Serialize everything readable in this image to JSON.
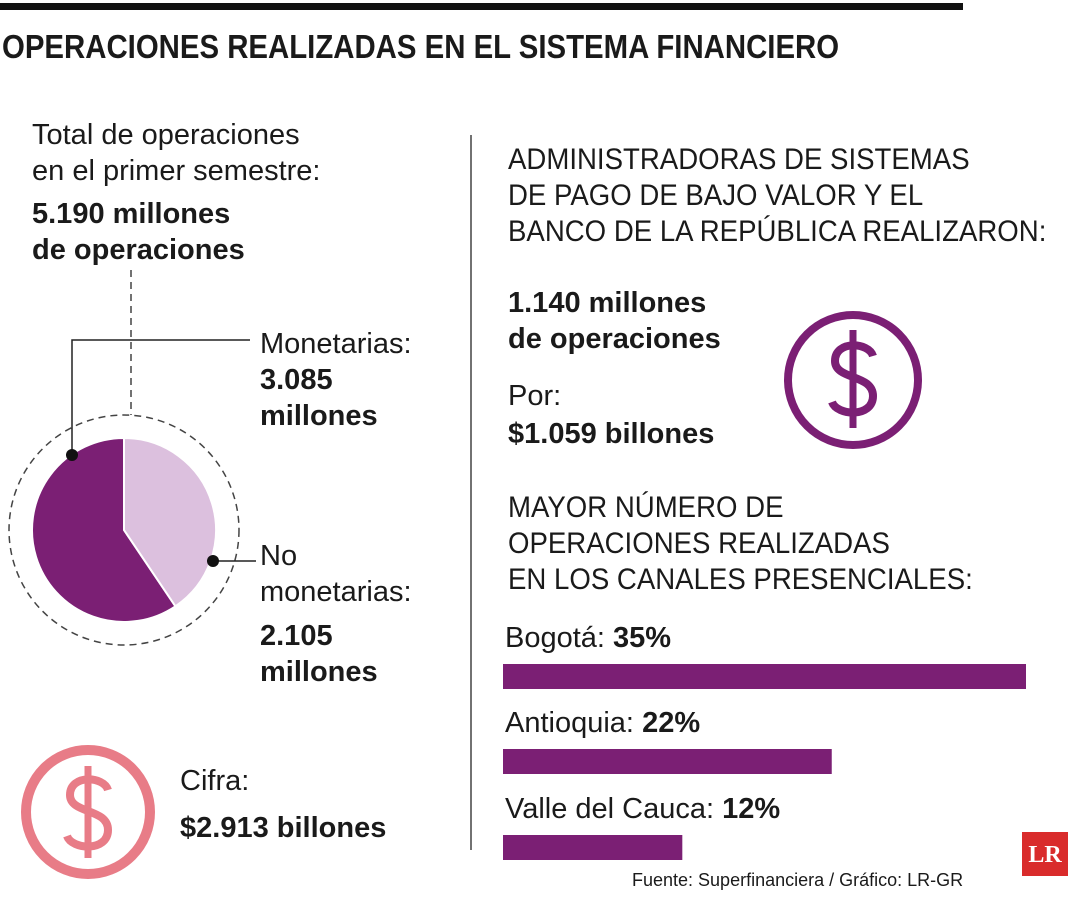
{
  "title": "OPERACIONES REALIZADAS EN EL SISTEMA FINANCIERO",
  "left": {
    "intro": [
      "Total de operaciones",
      "en el primer semestre:"
    ],
    "total": [
      "5.190 millones",
      "de operaciones"
    ],
    "cifra_label": "Cifra:",
    "cifra_value": "$2.913 billones"
  },
  "right": {
    "heading": [
      "ADMINISTRADORAS DE SISTEMAS",
      "DE PAGO DE BAJO VALOR Y EL",
      "BANCO DE LA REPÚBLICA REALIZARON:"
    ],
    "operations": [
      "1.140 millones",
      "de operaciones"
    ],
    "por_label": "Por:",
    "por_value": "$1.059 billones"
  },
  "chart_data": [
    {
      "type": "pie",
      "categories": [
        "Monetarias:",
        "No monetarias:"
      ],
      "values": [
        3085,
        2105
      ],
      "value_labels": [
        "3.085 millones",
        "2.105 millones"
      ],
      "colors": [
        "#7b1f74",
        "#dcc0de"
      ]
    },
    {
      "type": "bar",
      "title": [
        "MAYOR NÚMERO DE",
        "OPERACIONES REALIZADAS",
        "EN LOS CANALES PRESENCIALES:"
      ],
      "categories": [
        "Bogotá:",
        "Antioquia:",
        "Valle del Cauca:"
      ],
      "values": [
        35,
        22,
        12
      ],
      "value_labels": [
        "35%",
        "22%",
        "12%"
      ],
      "color": "#7b1f74"
    }
  ],
  "source": "Fuente: Superfinanciera / Gráfico: LR-GR",
  "logo": "LR"
}
